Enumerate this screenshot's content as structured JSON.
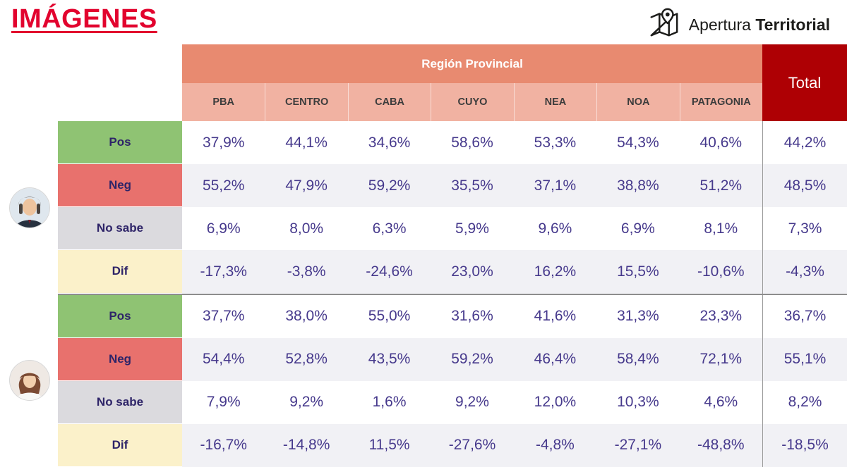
{
  "title": "IMÁGENES",
  "branding": {
    "prefix": "Apertura",
    "suffix": "Territorial",
    "icon": "map-location-icon"
  },
  "table": {
    "group_header": "Región Provincial",
    "total_header": "Total",
    "columns": [
      "PBA",
      "CENTRO",
      "CABA",
      "CUYO",
      "NEA",
      "NOA",
      "PATAGONIA"
    ],
    "groups": [
      {
        "person": "person-1",
        "rows": [
          {
            "label": "Pos",
            "type": "pos",
            "values": [
              "37,9%",
              "44,1%",
              "34,6%",
              "58,6%",
              "53,3%",
              "54,3%",
              "40,6%"
            ],
            "total": "44,2%"
          },
          {
            "label": "Neg",
            "type": "neg",
            "values": [
              "55,2%",
              "47,9%",
              "59,2%",
              "35,5%",
              "37,1%",
              "38,8%",
              "51,2%"
            ],
            "total": "48,5%"
          },
          {
            "label": "No sabe",
            "type": "nosabe",
            "values": [
              "6,9%",
              "8,0%",
              "6,3%",
              "5,9%",
              "9,6%",
              "6,9%",
              "8,1%"
            ],
            "total": "7,3%"
          },
          {
            "label": "Dif",
            "type": "dif",
            "values": [
              "-17,3%",
              "-3,8%",
              "-24,6%",
              "23,0%",
              "16,2%",
              "15,5%",
              "-10,6%"
            ],
            "total": "-4,3%"
          }
        ]
      },
      {
        "person": "person-2",
        "rows": [
          {
            "label": "Pos",
            "type": "pos",
            "values": [
              "37,7%",
              "38,0%",
              "55,0%",
              "31,6%",
              "41,6%",
              "31,3%",
              "23,3%"
            ],
            "total": "36,7%"
          },
          {
            "label": "Neg",
            "type": "neg",
            "values": [
              "54,4%",
              "52,8%",
              "43,5%",
              "59,2%",
              "46,4%",
              "58,4%",
              "72,1%"
            ],
            "total": "55,1%"
          },
          {
            "label": "No sabe",
            "type": "nosabe",
            "values": [
              "7,9%",
              "9,2%",
              "1,6%",
              "9,2%",
              "12,0%",
              "10,3%",
              "4,6%"
            ],
            "total": "8,2%"
          },
          {
            "label": "Dif",
            "type": "dif",
            "values": [
              "-16,7%",
              "-14,8%",
              "11,5%",
              "-27,6%",
              "-4,8%",
              "-27,1%",
              "-48,8%"
            ],
            "total": "-18,5%"
          }
        ]
      }
    ]
  },
  "colors": {
    "title_red": "#e2032e",
    "region_band": "#e88a70",
    "column_header": "#f1b2a2",
    "total_bg": "#ae0004",
    "pos_green": "#8fc373",
    "neg_red": "#e8716d",
    "nosabe_gray": "#dbdade",
    "dif_cream": "#fbf1ca",
    "value_purple": "#46398c",
    "alt_row": "#f1f1f5"
  },
  "chart_data": {
    "type": "table",
    "title": "IMÁGENES",
    "column_group": "Región Provincial",
    "columns": [
      "PBA",
      "CENTRO",
      "CABA",
      "CUYO",
      "NEA",
      "NOA",
      "PATAGONIA",
      "Total"
    ],
    "rows": [
      {
        "person": 1,
        "metric": "Pos",
        "values": [
          37.9,
          44.1,
          34.6,
          58.6,
          53.3,
          54.3,
          40.6,
          44.2
        ]
      },
      {
        "person": 1,
        "metric": "Neg",
        "values": [
          55.2,
          47.9,
          59.2,
          35.5,
          37.1,
          38.8,
          51.2,
          48.5
        ]
      },
      {
        "person": 1,
        "metric": "No sabe",
        "values": [
          6.9,
          8.0,
          6.3,
          5.9,
          9.6,
          6.9,
          8.1,
          7.3
        ]
      },
      {
        "person": 1,
        "metric": "Dif",
        "values": [
          -17.3,
          -3.8,
          -24.6,
          23.0,
          16.2,
          15.5,
          -10.6,
          -4.3
        ]
      },
      {
        "person": 2,
        "metric": "Pos",
        "values": [
          37.7,
          38.0,
          55.0,
          31.6,
          41.6,
          31.3,
          23.3,
          36.7
        ]
      },
      {
        "person": 2,
        "metric": "Neg",
        "values": [
          54.4,
          52.8,
          43.5,
          59.2,
          46.4,
          58.4,
          72.1,
          55.1
        ]
      },
      {
        "person": 2,
        "metric": "No sabe",
        "values": [
          7.9,
          9.2,
          1.6,
          9.2,
          12.0,
          10.3,
          4.6,
          8.2
        ]
      },
      {
        "person": 2,
        "metric": "Dif",
        "values": [
          -16.7,
          -14.8,
          11.5,
          -27.6,
          -4.8,
          -27.1,
          -48.8,
          -18.5
        ]
      }
    ]
  }
}
